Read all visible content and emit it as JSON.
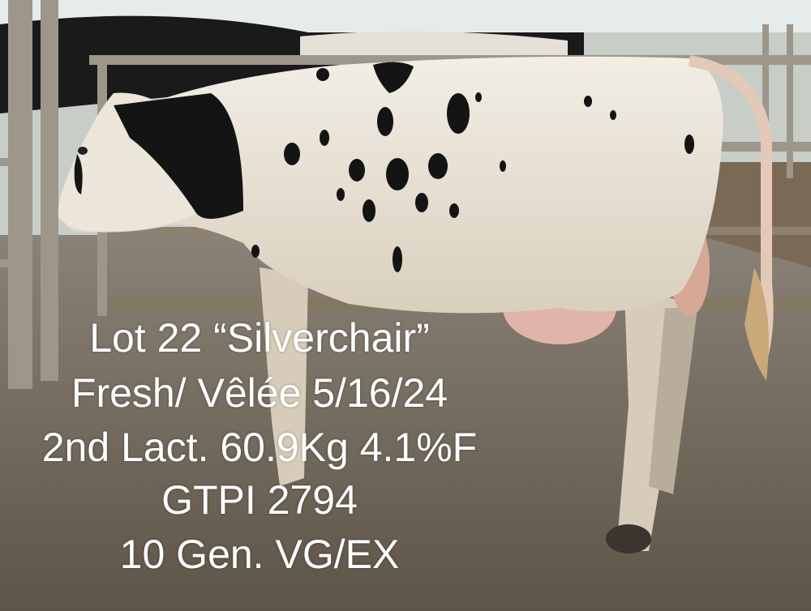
{
  "photo": {
    "subject": "holstein-cow",
    "colors": {
      "floor": "#6f6558",
      "barn": "#cfd3cf",
      "cow_white": "#ece6da",
      "cow_black": "#141414",
      "udder": "#e0b4a8"
    }
  },
  "caption": {
    "lines": [
      "Lot 22 “Silverchair”",
      "Fresh/ Vêlée 5/16/24",
      "2nd Lact. 60.9Kg 4.1%F",
      "GTPI 2794",
      "10 Gen. VG/EX"
    ]
  }
}
